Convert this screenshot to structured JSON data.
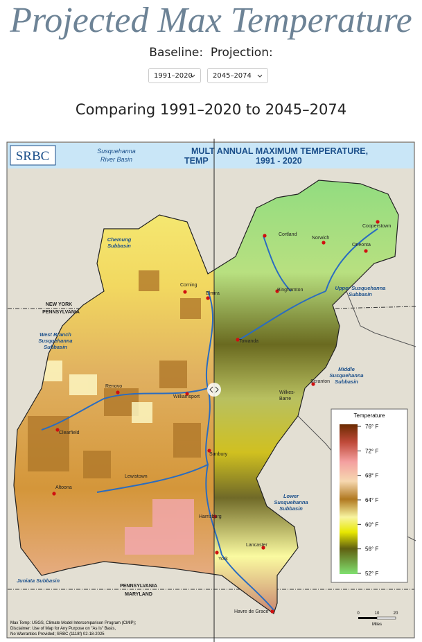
{
  "header": {
    "title": "Projected Max Temperature",
    "baseline_label": "Baseline:",
    "projection_label": "Projection:",
    "baseline_select": "1991–2020",
    "projection_select": "2045–2074"
  },
  "comparison": {
    "heading": "Comparing 1991–2020 to 2045–2074"
  },
  "map": {
    "logo": "SRBC",
    "basin_name": [
      "Susquehanna",
      "River Basin"
    ],
    "map_title": [
      "MULT ANNUAL MAXIMUM TEMPERATURE,",
      "TEMP",
      "1991 - 2020"
    ],
    "states": [
      "NEW YORK",
      "PENNSYLVANIA",
      "PENNSYLVANIA",
      "MARYLAND"
    ],
    "subbasins": [
      [
        "Chemung",
        "Subbasin"
      ],
      [
        "Upper Susquehanna",
        "Subbasin"
      ],
      [
        "West Branch",
        "Susquehanna",
        "Subbasin"
      ],
      [
        "Middle",
        "Susquehanna",
        "Subbasin"
      ],
      [
        "Lower",
        "Susquehanna",
        "Subbasin"
      ],
      [
        "Juniata Subbasin"
      ]
    ],
    "cities": [
      "Cortland",
      "Norwich",
      "Cooperstown",
      "Oneonta",
      "Corning",
      "Elmira",
      "Binghamton",
      "Towanda",
      "Scranton",
      "Wilkes-",
      "Barre",
      "Renovo",
      "Williamsport",
      "Clearfield",
      "Sunbury",
      "Lewistown",
      "Altoona",
      "Harrisburg",
      "York",
      "Lancaster",
      "Havre de Grace"
    ],
    "legend": {
      "title": "Temperature",
      "labels": [
        "76° F",
        "72° F",
        "68° F",
        "64° F",
        "60° F",
        "56° F",
        "52° F"
      ]
    },
    "scale": {
      "labels": [
        "0",
        "10",
        "20"
      ],
      "unit": "Miles"
    },
    "footer": [
      "Max Temp: USGS, Climate Model Intercomparison Program (CMIP);",
      "Disclaimer: Use of Map for Any Purpose on \"As Is\" Basis,",
      "No Warranties Provided; SRBC (1118f) 02-18-2025"
    ]
  }
}
